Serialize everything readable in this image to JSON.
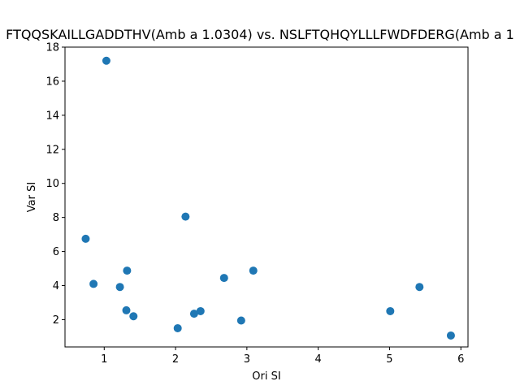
{
  "chart_data": {
    "type": "scatter",
    "title": "FTQQSKAILLGADDTHV(Amb a 1.0304) vs. NSLFTQHQYLLLFWDFDERG(Amb a 1",
    "xlabel": "Ori SI",
    "ylabel": "Var SI",
    "xlim": [
      0.45,
      6.1
    ],
    "ylim": [
      0.4,
      18.0
    ],
    "x_ticks": [
      1,
      2,
      3,
      4,
      5,
      6
    ],
    "y_ticks": [
      2,
      4,
      6,
      8,
      10,
      12,
      14,
      16,
      18
    ],
    "grid": false,
    "marker_color": "#1f77b4",
    "points": [
      {
        "x": 0.74,
        "y": 6.75
      },
      {
        "x": 1.03,
        "y": 17.2
      },
      {
        "x": 0.85,
        "y": 4.1
      },
      {
        "x": 1.22,
        "y": 3.92
      },
      {
        "x": 1.32,
        "y": 4.88
      },
      {
        "x": 1.31,
        "y": 2.55
      },
      {
        "x": 1.41,
        "y": 2.2
      },
      {
        "x": 2.14,
        "y": 8.05
      },
      {
        "x": 2.03,
        "y": 1.5
      },
      {
        "x": 2.26,
        "y": 2.35
      },
      {
        "x": 2.35,
        "y": 2.5
      },
      {
        "x": 2.68,
        "y": 4.45
      },
      {
        "x": 2.92,
        "y": 1.95
      },
      {
        "x": 3.09,
        "y": 4.88
      },
      {
        "x": 5.01,
        "y": 2.5
      },
      {
        "x": 5.42,
        "y": 3.92
      },
      {
        "x": 5.86,
        "y": 1.07
      }
    ]
  }
}
